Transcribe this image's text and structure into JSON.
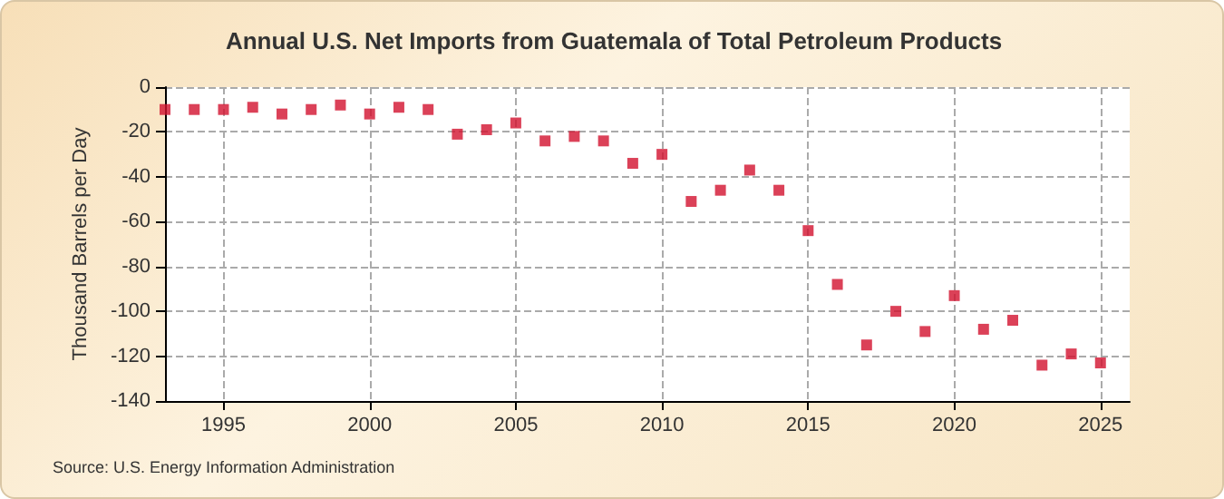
{
  "chart_data": {
    "type": "scatter",
    "title": "Annual U.S. Net Imports from Guatemala of Total Petroleum Products",
    "ylabel": "Thousand Barrels per Day",
    "annotations": [
      "Source: U.S. Energy Information Administration"
    ],
    "x": [
      1993,
      1994,
      1995,
      1996,
      1997,
      1998,
      1999,
      2000,
      2001,
      2002,
      2003,
      2004,
      2005,
      2006,
      2007,
      2008,
      2009,
      2010,
      2011,
      2012,
      2013,
      2014,
      2015,
      2016,
      2017,
      2018,
      2019,
      2020,
      2021,
      2022,
      2023,
      2024,
      2025
    ],
    "series": [
      {
        "color": "#d2122e",
        "values": [
          -10,
          -10,
          -10,
          -9,
          -12,
          -10,
          -8,
          -12,
          -9,
          -10,
          -21,
          -19,
          -16,
          -24,
          -22,
          -24,
          -34,
          -30,
          -51,
          -46,
          -37,
          -46,
          -64,
          -88,
          -115,
          -100,
          -109,
          -93,
          -108,
          -104,
          -124,
          -119,
          -123
        ]
      }
    ],
    "xlim": [
      1993,
      2026
    ],
    "xticks": [
      1995,
      2000,
      2005,
      2010,
      2015,
      2020,
      2025
    ],
    "ylim": [
      -140,
      0
    ],
    "yticks": [
      -140,
      -120,
      -100,
      -80,
      -60,
      -40,
      -20,
      0
    ],
    "grid": true,
    "marker": "square"
  }
}
